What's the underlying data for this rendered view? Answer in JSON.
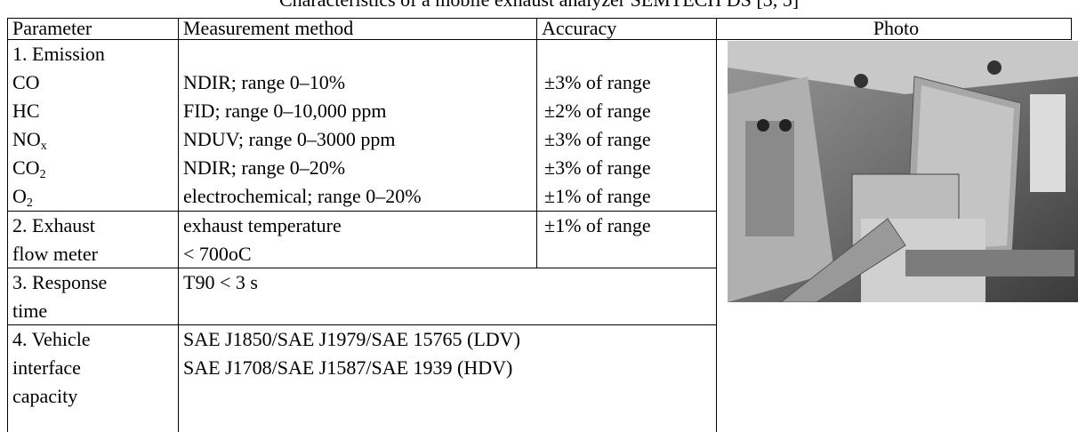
{
  "title": "Characteristics of a mobile exhaust analyzer SEMTECH DS [3, 5]",
  "table": {
    "header": [
      "Parameter",
      "Measurement method",
      "Accuracy",
      "Photo"
    ],
    "emission": {
      "label": "1. Emission",
      "items": [
        {
          "name": "CO",
          "method": "NDIR; range 0–10%",
          "accuracy": "±3% of range"
        },
        {
          "name": "HC",
          "method": "FID; range 0–10,000 ppm",
          "accuracy": "±2% of range"
        },
        {
          "name": "NO",
          "sub": "x",
          "method": "NDUV; range 0–3000 ppm",
          "accuracy": "±3% of range"
        },
        {
          "name": "CO",
          "sub": "2",
          "method": "NDIR; range 0–20%",
          "accuracy": "±3% of range"
        },
        {
          "name": "O",
          "sub": "2",
          "method": "electrochemical; range 0–20%",
          "accuracy": "±1% of range"
        }
      ]
    },
    "rows": [
      {
        "parameter": [
          "2. Exhaust",
          "flow meter"
        ],
        "method": [
          "exhaust temperature",
          "< 700oC"
        ],
        "accuracy": "±1% of range"
      },
      {
        "parameter": [
          "3. Response",
          "time"
        ],
        "method": [
          "T90 < 3 s"
        ]
      },
      {
        "parameter": [
          "4. Vehicle",
          "interface",
          "capacity"
        ],
        "method": [
          "SAE J1850/SAE J1979/SAE 15765 (LDV)",
          "SAE J1708/SAE J1587/SAE 1939 (HDV)"
        ]
      }
    ]
  }
}
